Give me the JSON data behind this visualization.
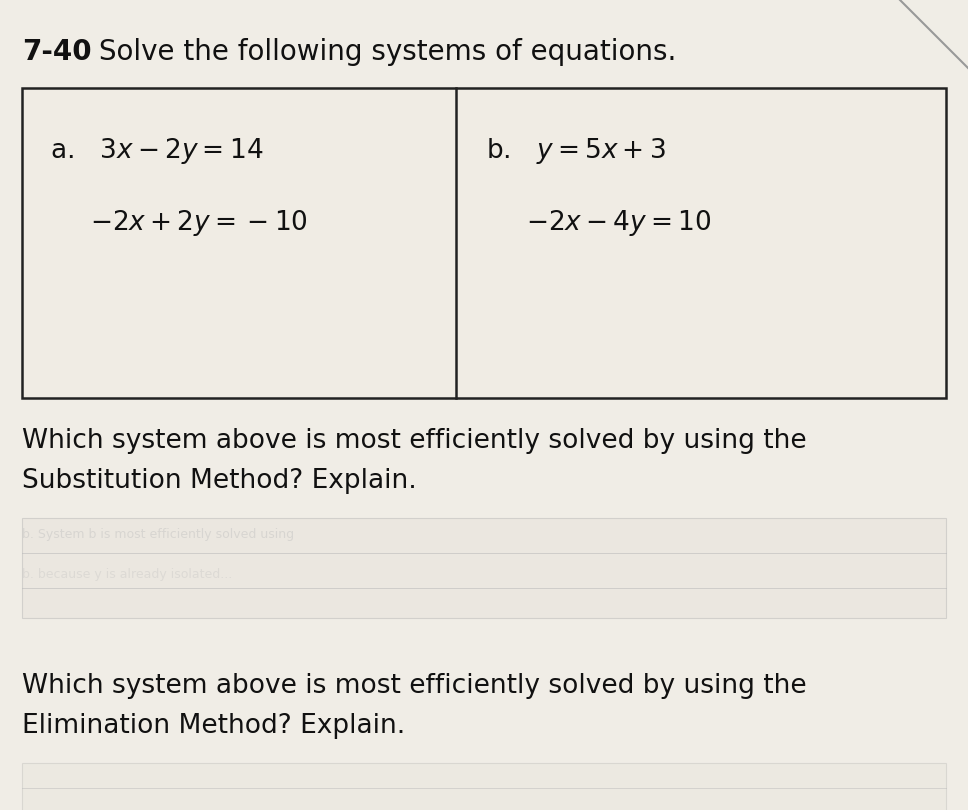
{
  "title_bold": "7-40",
  "title_rest": " Solve the following systems of equations.",
  "bg_color": "#e8e4dc",
  "box_bg": "#f0ece4",
  "box_border": "#222222",
  "system_a_eq1": "a.  $3x - 2y = 14$",
  "system_a_eq2": "$-2x + 2y = -10$",
  "system_b_eq1": "b.  $y = 5x + 3$",
  "system_b_eq2": "$-2x - 4y = 10$",
  "q1_line1": "Which system above is most efficiently solved by using the",
  "q1_line2": "Substitution Method? Explain.",
  "q2_line1": "Which system above is most efficiently solved by using the",
  "q2_line2": "Elimination Method? Explain.",
  "title_fontsize": 20,
  "eq_fontsize": 19,
  "q_fontsize": 19,
  "figsize": [
    9.68,
    8.1
  ],
  "dpi": 100
}
